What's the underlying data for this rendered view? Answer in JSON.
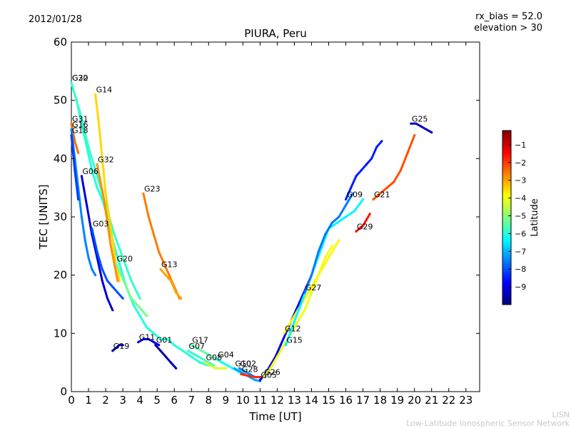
{
  "header": {
    "date": "2012/01/28",
    "rx_bias": "rx_bias = 52.0",
    "elevation": "elevation > 30"
  },
  "footer": {
    "org_short": "LISN",
    "org_long": "Low-Latitude Ionospheric Sensor Network"
  },
  "colorbar": {
    "label": "Latitude",
    "ticks": [
      "−1",
      "−2",
      "−3",
      "−4",
      "−5",
      "−6",
      "−7",
      "−8",
      "−9"
    ],
    "range": [
      -10,
      -0.2
    ],
    "colormap": [
      "#00007f",
      "#0000ff",
      "#007fff",
      "#00ffff",
      "#7fff7f",
      "#ffff00",
      "#ff7f00",
      "#ff0000",
      "#7f0000"
    ]
  },
  "chart_data": {
    "type": "scatter",
    "title": "PIURA, Peru",
    "xlabel": "Time [UT]",
    "ylabel": "TEC [UNITS]",
    "xlim": [
      0,
      23.8
    ],
    "ylim": [
      0,
      60
    ],
    "xticks": [
      "0",
      "1",
      "2",
      "3",
      "4",
      "5",
      "6",
      "7",
      "8",
      "9",
      "10",
      "11",
      "12",
      "13",
      "14",
      "15",
      "16",
      "17",
      "18",
      "19",
      "20",
      "21",
      "22",
      "23"
    ],
    "yticks": [
      "0",
      "10",
      "20",
      "30",
      "40",
      "50",
      "60"
    ],
    "grid": false,
    "series": [
      {
        "name": "G22",
        "latitude": -6.0,
        "x": [
          0,
          0.3,
          0.6,
          0.9,
          1.2,
          1.5,
          1.8,
          2.1,
          2.4,
          2.8,
          3.2,
          3.6,
          4.0,
          4.4,
          4.8,
          5.2,
          5.6,
          6.0,
          6.5,
          7.0,
          7.5,
          8.0
        ],
        "y": [
          53,
          50,
          46,
          42,
          38,
          35,
          33,
          30,
          26,
          22,
          18,
          15,
          13,
          11,
          10,
          9,
          9,
          8,
          7,
          6,
          5,
          4.5
        ]
      },
      {
        "name": "G30",
        "latitude": -5.8,
        "x": [
          0,
          0.5,
          1.0,
          1.5,
          2.0,
          2.5,
          3.0,
          3.5,
          4.0
        ],
        "y": [
          53,
          48,
          42,
          37,
          32,
          27,
          23,
          19,
          16
        ]
      },
      {
        "name": "G14",
        "latitude": -3.5,
        "x": [
          1.4,
          1.6,
          1.8,
          2.0,
          2.2,
          2.4,
          2.6,
          2.8
        ],
        "y": [
          51,
          46,
          40,
          34,
          30,
          26,
          22,
          19
        ]
      },
      {
        "name": "G31",
        "latitude": -2.5,
        "x": [
          0,
          0.2,
          0.4
        ],
        "y": [
          46,
          43,
          41
        ]
      },
      {
        "name": "G16",
        "latitude": -7.5,
        "x": [
          0,
          0.2,
          0.4,
          0.6,
          0.8,
          1.0,
          1.2,
          1.4
        ],
        "y": [
          45,
          40,
          35,
          30,
          26,
          23,
          21,
          20
        ]
      },
      {
        "name": "G18",
        "latitude": -8.2,
        "x": [
          0,
          0.2,
          0.4
        ],
        "y": [
          44,
          38,
          33
        ]
      },
      {
        "name": "G32",
        "latitude": -2.8,
        "x": [
          1.5,
          1.7,
          1.9,
          2.1,
          2.3,
          2.5,
          2.7
        ],
        "y": [
          39,
          36,
          33,
          29,
          25,
          22,
          19
        ]
      },
      {
        "name": "G06",
        "latitude": -9.2,
        "x": [
          0.6,
          0.9,
          1.2,
          1.5,
          1.8,
          2.1,
          2.4
        ],
        "y": [
          37,
          32,
          27,
          23,
          19,
          16,
          14
        ]
      },
      {
        "name": "G03",
        "latitude": -8.0,
        "x": [
          1.2,
          1.5,
          1.8,
          2.1,
          2.4,
          2.7,
          3.0
        ],
        "y": [
          28,
          24,
          21,
          19,
          18,
          17,
          16
        ]
      },
      {
        "name": "G23",
        "latitude": -2.6,
        "x": [
          4.2,
          4.5,
          4.8,
          5.1,
          5.4,
          5.7,
          6.0,
          6.3
        ],
        "y": [
          34,
          30,
          27,
          24,
          22,
          20,
          18,
          16
        ]
      },
      {
        "name": "G20",
        "latitude": -5.2,
        "x": [
          2.6,
          2.9,
          3.2,
          3.5,
          3.8,
          4.1,
          4.4
        ],
        "y": [
          22,
          20,
          18,
          16,
          15,
          14,
          13
        ]
      },
      {
        "name": "G13",
        "latitude": -3.0,
        "x": [
          5.2,
          5.5,
          5.8,
          6.1,
          6.4
        ],
        "y": [
          21,
          20,
          19,
          17,
          16
        ]
      },
      {
        "name": "G19",
        "latitude": -9.5,
        "x": [
          2.4,
          2.6,
          2.8,
          3.0
        ],
        "y": [
          7,
          7.5,
          8,
          8
        ]
      },
      {
        "name": "G11",
        "latitude": -9.0,
        "x": [
          3.9,
          4.2,
          4.5,
          4.8,
          5.1
        ],
        "y": [
          8.5,
          9,
          9,
          8.5,
          8
        ]
      },
      {
        "name": "G01",
        "latitude": -9.6,
        "x": [
          4.9,
          5.2,
          5.5,
          5.8,
          6.1
        ],
        "y": [
          8,
          7,
          6,
          5,
          4
        ]
      },
      {
        "name": "G17",
        "latitude": -5.5,
        "x": [
          7.0,
          7.3,
          7.6,
          7.9,
          8.2,
          8.5,
          8.8
        ],
        "y": [
          8,
          7.5,
          7,
          6.5,
          6,
          5.5,
          5
        ]
      },
      {
        "name": "G07",
        "latitude": -5.8,
        "x": [
          6.8,
          7.1,
          7.4,
          7.7,
          8.0,
          8.3
        ],
        "y": [
          7,
          6.5,
          6,
          5.5,
          5,
          4.5
        ]
      },
      {
        "name": "G08",
        "latitude": -4.2,
        "x": [
          7.8,
          8.1,
          8.4,
          8.7,
          9.0
        ],
        "y": [
          5,
          4.5,
          4,
          4,
          4
        ]
      },
      {
        "name": "G04",
        "latitude": -6.2,
        "x": [
          8.5,
          8.8,
          9.1,
          9.4,
          9.7,
          10.0
        ],
        "y": [
          5.5,
          5,
          4.5,
          4,
          3.5,
          3
        ]
      },
      {
        "name": "G10",
        "latitude": -7.2,
        "x": [
          9.5,
          9.8,
          10.1,
          10.4,
          10.7,
          11.0
        ],
        "y": [
          4,
          3.5,
          3,
          2.5,
          2,
          1.8
        ]
      },
      {
        "name": "G02",
        "latitude": -7.5,
        "x": [
          9.8,
          10.1,
          10.4,
          10.7,
          11.0,
          11.3
        ],
        "y": [
          4,
          3.5,
          3,
          2.5,
          2.5,
          2.5
        ]
      },
      {
        "name": "G28",
        "latitude": -1.8,
        "x": [
          9.9,
          10.2,
          10.5,
          10.8,
          11.1
        ],
        "y": [
          3,
          2.8,
          2.6,
          2.5,
          2.5
        ]
      },
      {
        "name": "G05",
        "latitude": -9.0,
        "x": [
          11.0,
          11.3,
          11.6,
          11.9,
          12.2,
          12.5,
          12.8,
          13.1,
          13.4,
          13.7,
          14.0
        ],
        "y": [
          2,
          3,
          4.5,
          6,
          8,
          10,
          12,
          14,
          16,
          18,
          20
        ]
      },
      {
        "name": "G26",
        "latitude": -4.0,
        "x": [
          11.2,
          11.6,
          12.0,
          12.4,
          12.8,
          13.2,
          13.6,
          14.0,
          14.4,
          14.8,
          15.2
        ],
        "y": [
          2.5,
          4,
          6,
          8,
          10,
          12,
          14,
          17,
          20,
          23,
          25
        ]
      },
      {
        "name": "G12",
        "latitude": -3.8,
        "x": [
          12.4,
          12.8,
          13.2,
          13.6,
          14.0,
          14.4,
          14.8,
          15.2,
          15.6
        ],
        "y": [
          10,
          12,
          14,
          16,
          18,
          20,
          22,
          24,
          26
        ]
      },
      {
        "name": "G15",
        "latitude": -6.4,
        "x": [
          12.5,
          13.0,
          13.5,
          14.0,
          14.5,
          15.0,
          15.5,
          16.0,
          16.5,
          17.0
        ],
        "y": [
          8,
          12,
          16,
          20,
          24,
          28,
          29,
          30,
          31,
          33
        ]
      },
      {
        "name": "G27",
        "latitude": -7.6,
        "x": [
          13.6,
          14.0,
          14.4,
          14.8,
          15.2,
          15.6,
          16.0,
          16.4
        ],
        "y": [
          17,
          20,
          24,
          27,
          29,
          30,
          32,
          34
        ]
      },
      {
        "name": "G09",
        "latitude": -8.5,
        "x": [
          16.0,
          16.3,
          16.6,
          16.9,
          17.2,
          17.5,
          17.8,
          18.1
        ],
        "y": [
          33,
          35,
          37,
          38,
          39,
          40,
          42,
          43
        ]
      },
      {
        "name": "G29",
        "latitude": -1.6,
        "x": [
          16.6,
          16.8,
          17.0,
          17.2,
          17.4
        ],
        "y": [
          27.5,
          28,
          28.5,
          29.5,
          30.5
        ]
      },
      {
        "name": "G21",
        "latitude": -2.2,
        "x": [
          17.6,
          18.0,
          18.4,
          18.8,
          19.2,
          19.6,
          20.0
        ],
        "y": [
          33,
          34,
          35,
          36,
          38,
          41,
          44
        ]
      },
      {
        "name": "G25",
        "latitude": -9.3,
        "x": [
          19.8,
          20.1,
          20.4,
          20.7,
          21.0
        ],
        "y": [
          46,
          46,
          45.5,
          45,
          44.5
        ]
      }
    ]
  }
}
